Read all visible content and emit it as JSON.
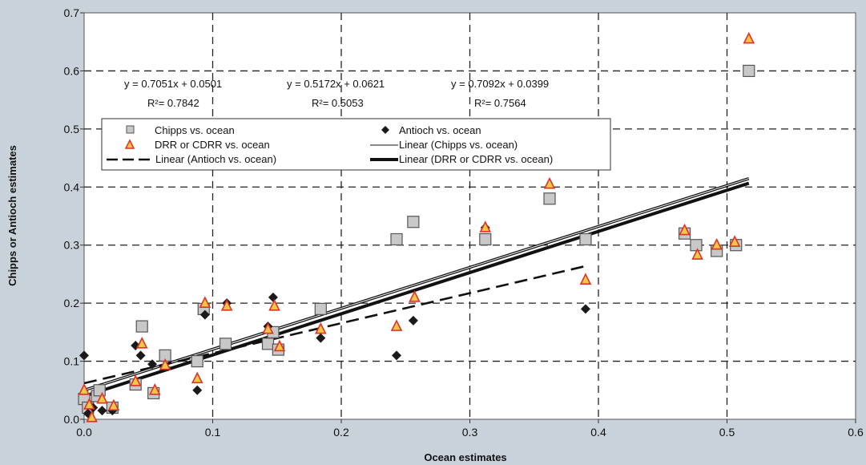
{
  "chart_data": {
    "type": "scatter",
    "xlabel": "Ocean estimates",
    "ylabel": "Chipps or Antioch estimates",
    "xlim": [
      0,
      0.6
    ],
    "ylim": [
      0,
      0.7
    ],
    "x_ticks": [
      "0.0",
      "0.1",
      "0.2",
      "0.3",
      "0.4",
      "0.5",
      "0.6"
    ],
    "y_ticks": [
      "0.0",
      "0.1",
      "0.2",
      "0.3",
      "0.4",
      "0.5",
      "0.6",
      "0.7"
    ],
    "grid": true,
    "legend_position": "top-left",
    "series": [
      {
        "name": "Chipps vs. ocean",
        "marker": "square",
        "color": "#c8c8c8",
        "points": [
          [
            0.0,
            0.035
          ],
          [
            0.003,
            0.02
          ],
          [
            0.01,
            0.04
          ],
          [
            0.012,
            0.05
          ],
          [
            0.022,
            0.02
          ],
          [
            0.04,
            0.06
          ],
          [
            0.045,
            0.16
          ],
          [
            0.054,
            0.045
          ],
          [
            0.063,
            0.11
          ],
          [
            0.088,
            0.1
          ],
          [
            0.093,
            0.19
          ],
          [
            0.11,
            0.13
          ],
          [
            0.143,
            0.13
          ],
          [
            0.147,
            0.15
          ],
          [
            0.151,
            0.12
          ],
          [
            0.184,
            0.19
          ],
          [
            0.243,
            0.31
          ],
          [
            0.256,
            0.34
          ],
          [
            0.312,
            0.31
          ],
          [
            0.362,
            0.38
          ],
          [
            0.39,
            0.31
          ],
          [
            0.467,
            0.32
          ],
          [
            0.476,
            0.3
          ],
          [
            0.492,
            0.29
          ],
          [
            0.507,
            0.3
          ],
          [
            0.517,
            0.6
          ]
        ]
      },
      {
        "name": "Antioch vs. ocean",
        "marker": "diamond",
        "color": "#1a1a1a",
        "points": [
          [
            0.0,
            0.11
          ],
          [
            0.003,
            0.01
          ],
          [
            0.007,
            0.02
          ],
          [
            0.014,
            0.015
          ],
          [
            0.022,
            0.015
          ],
          [
            0.04,
            0.127
          ],
          [
            0.044,
            0.11
          ],
          [
            0.053,
            0.095
          ],
          [
            0.063,
            0.09
          ],
          [
            0.088,
            0.05
          ],
          [
            0.094,
            0.18
          ],
          [
            0.111,
            0.2
          ],
          [
            0.143,
            0.16
          ],
          [
            0.147,
            0.21
          ],
          [
            0.184,
            0.14
          ],
          [
            0.243,
            0.11
          ],
          [
            0.256,
            0.17
          ],
          [
            0.312,
            0.33
          ],
          [
            0.39,
            0.19
          ]
        ]
      },
      {
        "name": "DRR or CDRR vs. ocean",
        "marker": "triangle",
        "color": "#f2c744",
        "edge_color": "#e0302a",
        "points": [
          [
            0.0,
            0.05
          ],
          [
            0.004,
            0.025
          ],
          [
            0.006,
            0.003
          ],
          [
            0.014,
            0.035
          ],
          [
            0.023,
            0.023
          ],
          [
            0.04,
            0.065
          ],
          [
            0.045,
            0.13
          ],
          [
            0.055,
            0.05
          ],
          [
            0.063,
            0.093
          ],
          [
            0.088,
            0.07
          ],
          [
            0.094,
            0.2
          ],
          [
            0.111,
            0.195
          ],
          [
            0.143,
            0.155
          ],
          [
            0.148,
            0.195
          ],
          [
            0.152,
            0.125
          ],
          [
            0.184,
            0.155
          ],
          [
            0.243,
            0.16
          ],
          [
            0.257,
            0.21
          ],
          [
            0.312,
            0.33
          ],
          [
            0.362,
            0.405
          ],
          [
            0.39,
            0.24
          ],
          [
            0.467,
            0.325
          ],
          [
            0.477,
            0.283
          ],
          [
            0.492,
            0.3
          ],
          [
            0.506,
            0.305
          ],
          [
            0.517,
            0.655
          ]
        ]
      }
    ],
    "trendlines": [
      {
        "name": "Linear (Chipps vs. ocean)",
        "slope": 0.7051,
        "intercept": 0.0501,
        "x_range": [
          0,
          0.517
        ],
        "style": "thin-double",
        "equation": "y = 0.7051x + 0.0501",
        "r2": "R²= 0.7842"
      },
      {
        "name": "Linear (Antioch vs. ocean)",
        "slope": 0.5172,
        "intercept": 0.0621,
        "x_range": [
          0,
          0.39
        ],
        "style": "dashed",
        "equation": "y = 0.5172x + 0.0621",
        "r2": "R²= 0.5053"
      },
      {
        "name": "Linear (DRR or CDRR vs. ocean)",
        "slope": 0.7092,
        "intercept": 0.0399,
        "x_range": [
          0,
          0.517
        ],
        "style": "thick",
        "equation": "y = 0.7092x + 0.0399",
        "r2": "R²= 0.7564"
      }
    ],
    "legend": [
      {
        "label": "Chipps vs. ocean",
        "marker": "square"
      },
      {
        "label": "Antioch vs. ocean",
        "marker": "diamond"
      },
      {
        "label": "DRR or CDRR vs. ocean",
        "marker": "triangle"
      },
      {
        "label": "Linear (Chipps vs. ocean)",
        "marker": "thin-line"
      },
      {
        "label": "Linear (Antioch vs. ocean)",
        "marker": "dashed-line"
      },
      {
        "label": "Linear (DRR or CDRR vs. ocean)",
        "marker": "thick-line"
      }
    ]
  }
}
